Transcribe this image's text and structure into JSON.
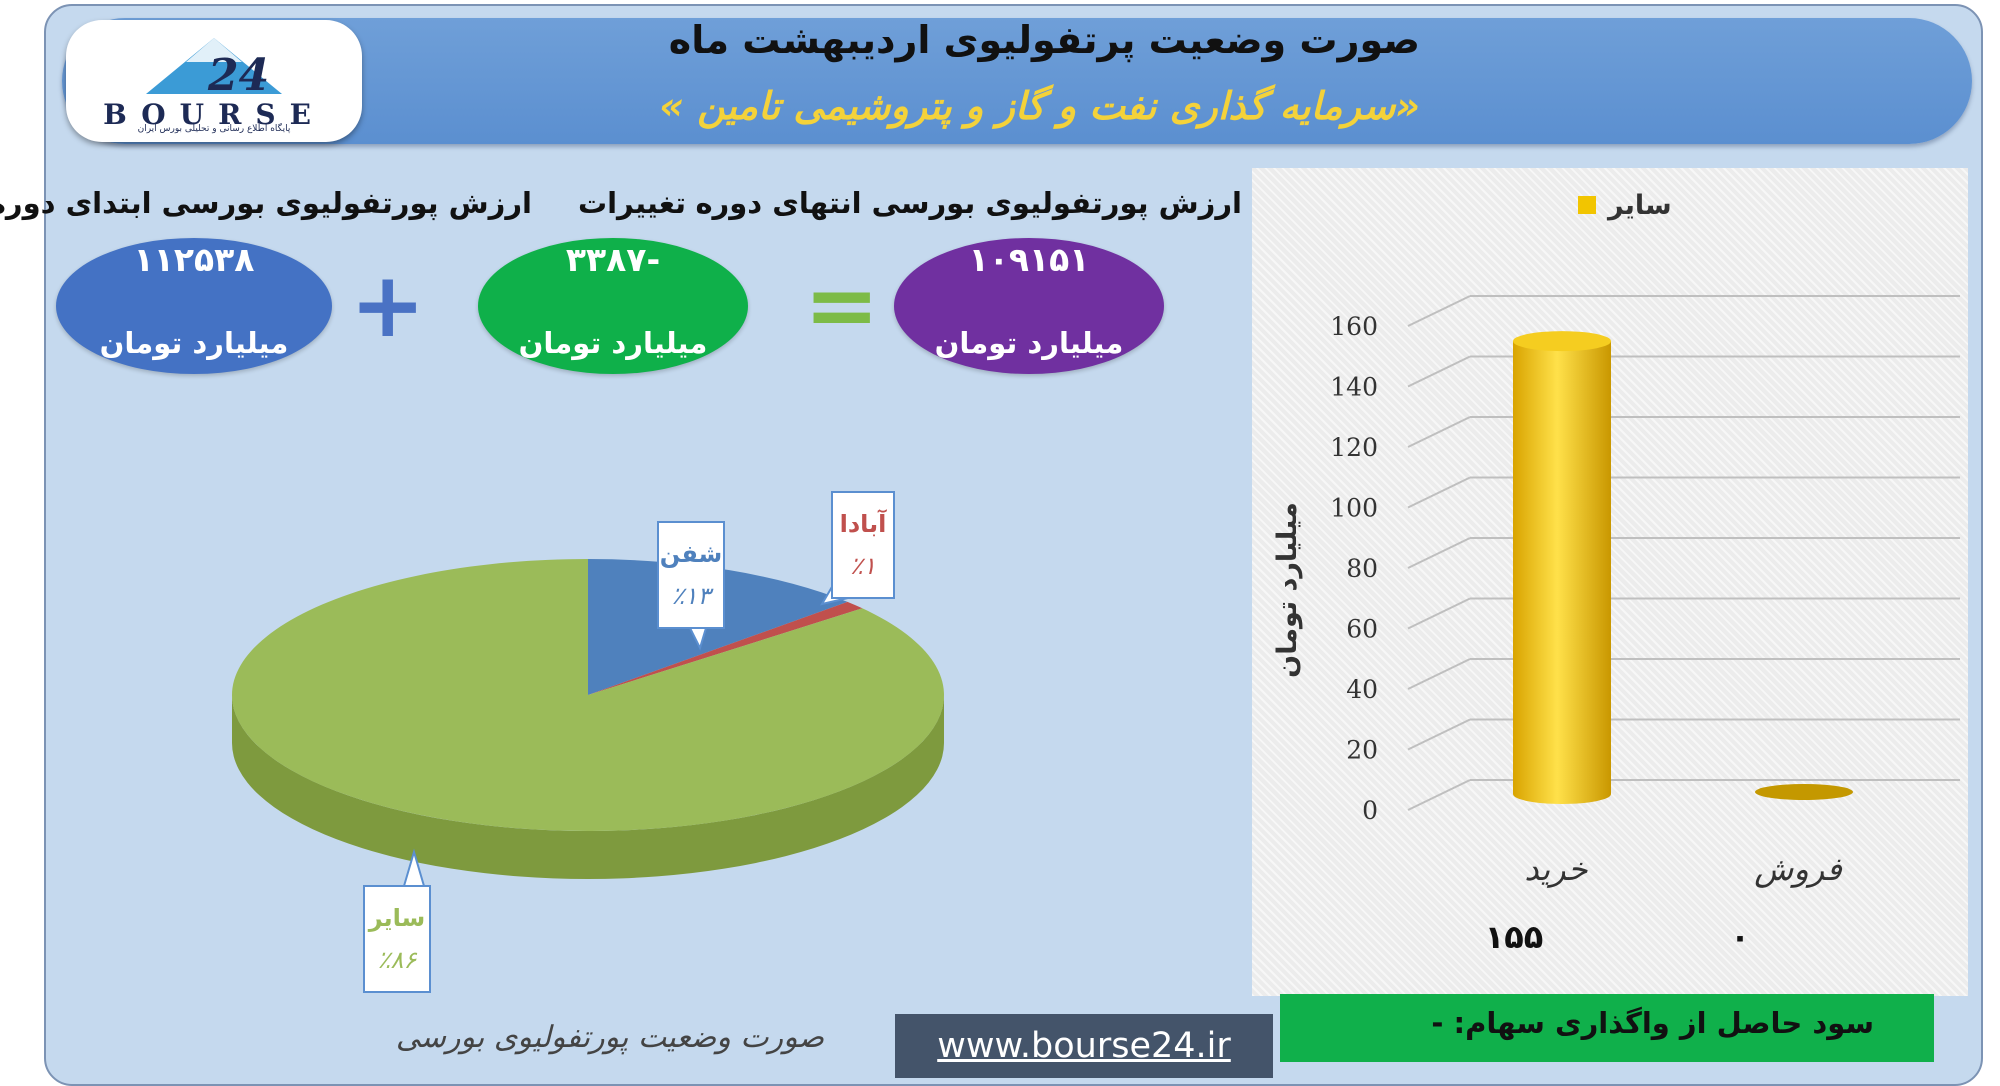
{
  "header": {
    "title_line1": "صورت وضعیت پرتفولیوی اردیبهشت ماه",
    "title_line2": "«سرمایه گذاری نفت و گاز و پتروشیمی تامین »"
  },
  "logo": {
    "brand": "BOURSE",
    "number": "24",
    "tagline": "پایگاه اطلاع رسانی و تحلیلی بورس ایران"
  },
  "summary": {
    "start": {
      "label": "ارزش پورتفولیوی بورسی ابتدای دوره",
      "value": "۱۱۲۵۳۸",
      "unit": "میلیارد تومان"
    },
    "change": {
      "label": "تغییرات",
      "value": "-۳۳۸۷",
      "unit": "میلیارد تومان"
    },
    "end": {
      "label": "ارزش پورتفولیوی بورسی انتهای دوره",
      "value": "۱۰۹۱۵۱",
      "unit": "میلیارد تومان"
    },
    "plus_sign": "+",
    "equals_sign": "="
  },
  "pie_caption": "صورت وضعیت پورتفولیوی بورسی",
  "website": "www.bourse24.ir",
  "profit_text": "سود حاصل از واگذاری سهام: -",
  "colors": {
    "header": "#5b8fd0",
    "pie_green": "#9bbb59",
    "pie_blue": "#4f81bd",
    "pie_red": "#c0504d",
    "bar_gold": "#f2c500",
    "ellipse_blue": "#4472c4",
    "ellipse_green": "#0fb04a",
    "ellipse_purple": "#7030a0",
    "profit_green": "#10b04b"
  },
  "chart_data": [
    {
      "type": "pie",
      "title": "",
      "slices": [
        {
          "name": "سایر",
          "label": "٪۸۶",
          "value": 86
        },
        {
          "name": "شفن",
          "label": "٪۱۳",
          "value": 13
        },
        {
          "name": "آبادا",
          "label": "٪۱",
          "value": 1
        }
      ]
    },
    {
      "type": "bar",
      "title": "",
      "categories": [
        "خرید",
        "فروش"
      ],
      "category_values": [
        "۱۵۵",
        "۰"
      ],
      "series": [
        {
          "name": "سایر",
          "values": [
            155,
            0
          ]
        }
      ],
      "ylabel": "میلیارد تومان",
      "yticks": [
        "0",
        "20",
        "40",
        "60",
        "80",
        "100",
        "120",
        "140",
        "160"
      ],
      "ylim": [
        0,
        160
      ],
      "legend": "top"
    }
  ]
}
